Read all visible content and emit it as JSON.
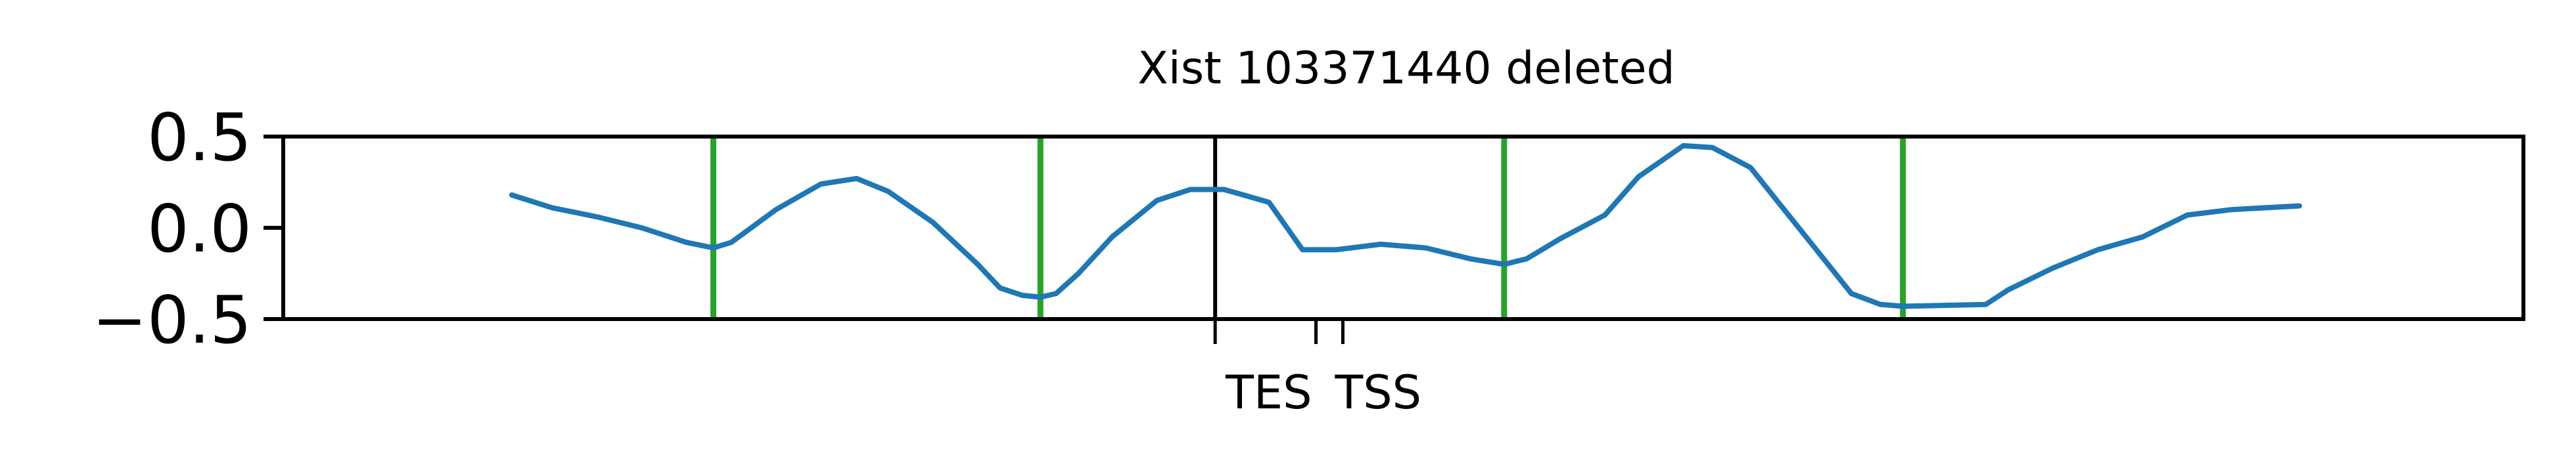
{
  "chart_data": {
    "type": "line",
    "title": "Xist 103371440 deleted",
    "xlabel": "",
    "ylabel": "",
    "xlim": [
      0,
      1000
    ],
    "ylim": [
      -0.5,
      0.5
    ],
    "yticks": [
      {
        "value": 0.5,
        "label": "0.5"
      },
      {
        "value": 0.0,
        "label": "0.0"
      },
      {
        "value": -0.5,
        "label": "−0.5"
      }
    ],
    "xticks": [
      {
        "value": 416,
        "label": "TES"
      },
      {
        "value": 461,
        "label": ""
      },
      {
        "value": 473,
        "label": "TSS"
      }
    ],
    "grid": false,
    "colors": {
      "line": "#1f77b4",
      "marker_green": "#2ca02c",
      "marker_black": "#000000"
    },
    "vlines": [
      {
        "x": 192,
        "color": "green"
      },
      {
        "x": 338,
        "color": "green"
      },
      {
        "x": 416,
        "color": "black"
      },
      {
        "x": 545,
        "color": "green"
      },
      {
        "x": 723,
        "color": "green"
      }
    ],
    "series": [
      {
        "x": [
          102,
          120,
          140,
          160,
          180,
          192,
          200,
          220,
          240,
          256,
          270,
          290,
          310,
          320,
          330,
          338,
          345,
          355,
          370,
          390,
          405,
          420,
          440,
          455,
          470,
          490,
          510,
          530,
          545,
          555,
          570,
          590,
          605,
          625,
          638,
          655,
          670,
          685,
          700,
          713,
          723,
          760,
          770,
          790,
          810,
          830,
          850,
          870,
          900
        ],
        "y": [
          0.18,
          0.11,
          0.06,
          0.0,
          -0.08,
          -0.11,
          -0.08,
          0.1,
          0.24,
          0.27,
          0.2,
          0.03,
          -0.2,
          -0.33,
          -0.37,
          -0.38,
          -0.36,
          -0.25,
          -0.05,
          0.15,
          0.21,
          0.21,
          0.14,
          -0.12,
          -0.12,
          -0.09,
          -0.11,
          -0.17,
          -0.2,
          -0.17,
          -0.06,
          0.07,
          0.28,
          0.45,
          0.44,
          0.33,
          0.1,
          -0.13,
          -0.36,
          -0.42,
          -0.43,
          -0.42,
          -0.34,
          -0.22,
          -0.12,
          -0.05,
          0.07,
          0.1,
          0.12
        ]
      }
    ]
  }
}
